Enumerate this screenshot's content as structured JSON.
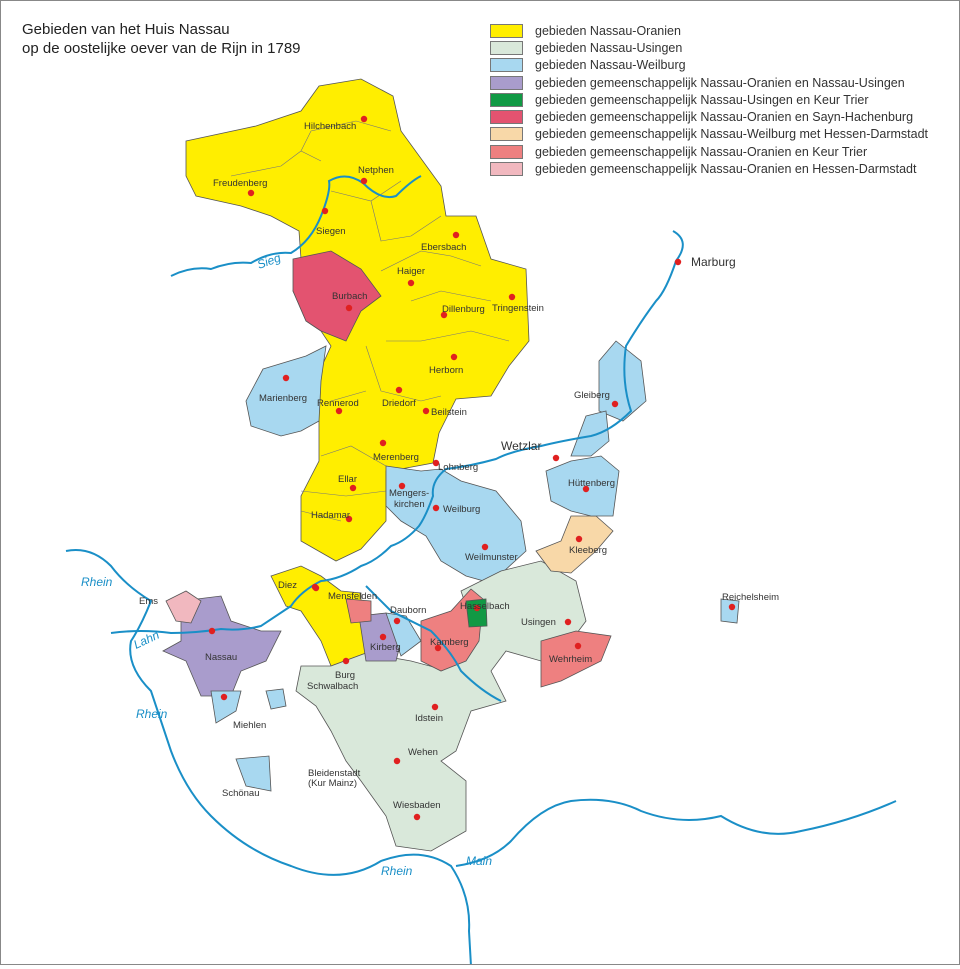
{
  "title": {
    "line1": "Gebieden van het Huis Nassau",
    "line2": "op de oostelijke oever van de Rijn in 1789"
  },
  "colors": {
    "nassau_oranien": "#ffee00",
    "nassau_usingen": "#d9e8da",
    "nassau_weilburg": "#a8d8f0",
    "oranien_usingen": "#a99ccc",
    "usingen_trier": "#119944",
    "oranien_sayn": "#e35370",
    "weilburg_hessen": "#f8d8a8",
    "oranien_trier": "#ee8080",
    "oranien_hessen": "#f1b8bf",
    "river": "#1a8fc7",
    "town": "#e02020"
  },
  "legend": [
    {
      "label": "gebieden Nassau-Oranien",
      "color": "#ffee00"
    },
    {
      "label": "gebieden Nassau-Usingen",
      "color": "#d9e8da"
    },
    {
      "label": "gebieden Nassau-Weilburg",
      "color": "#a8d8f0"
    },
    {
      "label": "gebieden gemeenschappelijk Nassau-Oranien en Nassau-Usingen",
      "color": "#a99ccc"
    },
    {
      "label": "gebieden gemeenschappelijk Nassau-Usingen en Keur Trier",
      "color": "#119944"
    },
    {
      "label": "gebieden gemeenschappelijk Nassau-Oranien en Sayn-Hachenburg",
      "color": "#e35370"
    },
    {
      "label": "gebieden gemeenschappelijk Nassau-Weilburg met Hessen-Darmstadt",
      "color": "#f8d8a8"
    },
    {
      "label": "gebieden gemeenschappelijk Nassau-Oranien en Keur Trier",
      "color": "#ee8080"
    },
    {
      "label": "gebieden gemeenschappelijk Nassau-Oranien en Hessen-Darmstadt",
      "color": "#f1b8bf"
    }
  ],
  "rivers": {
    "sieg": "Sieg",
    "lahn": "Lahn",
    "rhein1": "Rhein",
    "rhein2": "Rhein",
    "rhein3": "Rhein",
    "main": "Main"
  },
  "places": {
    "hilchenbach": "Hilchenbach",
    "freudenberg": "Freudenberg",
    "netphen": "Netphen",
    "siegen": "Siegen",
    "ebersbach": "Ebersbach",
    "burbach": "Burbach",
    "haiger": "Haiger",
    "dillenburg": "Dillenburg",
    "tringenstein": "Tringenstein",
    "herborn": "Herborn",
    "marienberg": "Marienberg",
    "rennerod": "Rennerod",
    "driedorf": "Driedorf",
    "beilstein": "Beilstein",
    "merenberg": "Merenberg",
    "ellar": "Ellar",
    "lohnberg": "Lohnberg",
    "mengerskirchen1": "Mengers-",
    "mengerskirchen2": "kirchen",
    "weilburg": "Weilburg",
    "hadamar": "Hadamar",
    "weilmunster": "Weilmunster",
    "kleeberg": "Kleeberg",
    "huttenberg": "Hüttenberg",
    "gleiberg": "Gleiberg",
    "wetzlar": "Wetzlar",
    "marburg": "Marburg",
    "reichelsheim": "Reichelsheim",
    "diez": "Diez",
    "mensfelden": "Mensfelden",
    "dauborn": "Dauborn",
    "hasselbach": "Hasselbach",
    "usingen": "Usingen",
    "kamberg": "Kamberg",
    "kirberg": "Kirberg",
    "wehrheim": "Wehrheim",
    "ems": "Ems",
    "nassau": "Nassau",
    "burg": "Burg",
    "schwalbach": "Schwalbach",
    "miehlen": "Miehlen",
    "idstein": "Idstein",
    "wehen": "Wehen",
    "bleidenstadt1": "Bleidenstadt",
    "bleidenstadt2": "(Kur Mainz)",
    "schonau": "Schönau",
    "wiesbaden": "Wiesbaden"
  }
}
